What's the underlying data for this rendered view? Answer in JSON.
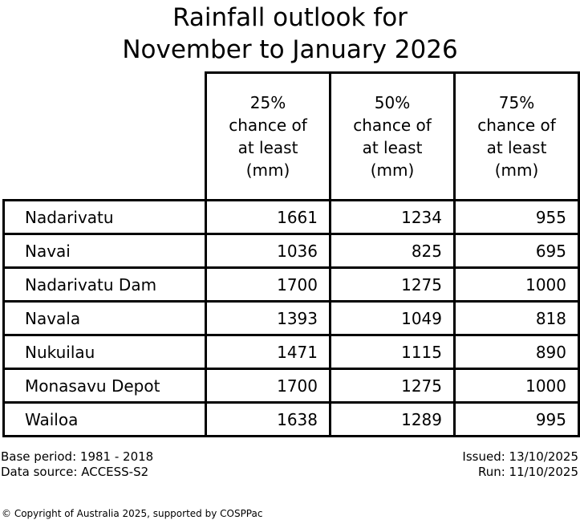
{
  "title": "Rainfall outlook for\nNovember to January 2026",
  "chart_data": {
    "type": "table",
    "title": "Rainfall outlook for November to January 2026",
    "column_headers": [
      "25%\nchance of\nat least\n(mm)",
      "50%\nchance of\nat least\n(mm)",
      "75%\nchance of\nat least\n(mm)"
    ],
    "row_labels": [
      "Nadarivatu",
      "Navai",
      "Nadarivatu Dam",
      "Navala",
      "Nukuilau",
      "Monasavu Depot",
      "Wailoa"
    ],
    "values": [
      [
        1661,
        1234,
        955
      ],
      [
        1036,
        825,
        695
      ],
      [
        1700,
        1275,
        1000
      ],
      [
        1393,
        1049,
        818
      ],
      [
        1471,
        1115,
        890
      ],
      [
        1700,
        1275,
        1000
      ],
      [
        1638,
        1289,
        995
      ]
    ],
    "layout": {
      "grid": "all-cell-borders",
      "border_color": "#000000",
      "background": "#ffffff",
      "value_alignment": "right",
      "label_alignment": "left"
    }
  },
  "footer": {
    "base_period": "Base period: 1981 - 2018",
    "data_source": "Data source: ACCESS-S2",
    "issued": "Issued: 13/10/2025",
    "run": "Run: 11/10/2025"
  },
  "copyright": "© Copyright of Australia 2025, supported by COSPPac"
}
